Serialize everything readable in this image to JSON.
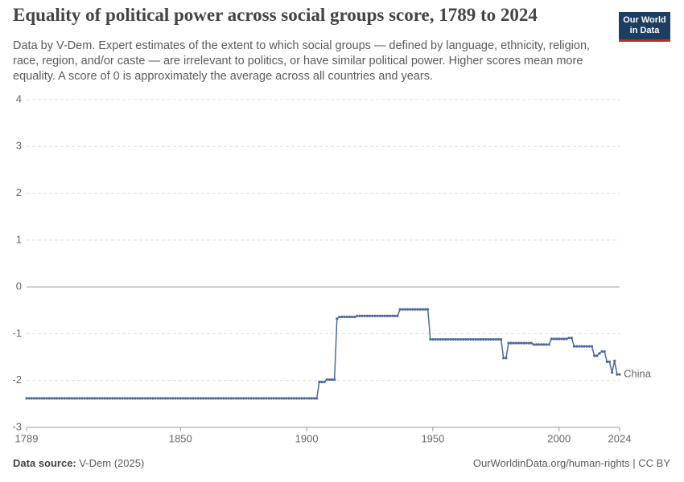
{
  "chart_data": {
    "type": "line",
    "title": "Equality of political power across social groups score, 1789 to 2024",
    "subtitle": "Data by V-Dem. Expert estimates of the extent to which social groups — defined by language, ethnicity, religion, race, region, and/or caste — are irrelevant to politics, or have similar political power. Higher scores mean more equality. A score of 0 is approximately the average across all countries and years.",
    "logo": "Our World in Data",
    "source_label": "Data source:",
    "source": "V-Dem (2025)",
    "footer_right": "OurWorldinData.org/human-rights | CC BY",
    "x": [
      1789,
      1790,
      1791,
      1792,
      1793,
      1794,
      1795,
      1796,
      1797,
      1798,
      1799,
      1800,
      1801,
      1802,
      1803,
      1804,
      1805,
      1806,
      1807,
      1808,
      1809,
      1810,
      1811,
      1812,
      1813,
      1814,
      1815,
      1816,
      1817,
      1818,
      1819,
      1820,
      1821,
      1822,
      1823,
      1824,
      1825,
      1826,
      1827,
      1828,
      1829,
      1830,
      1831,
      1832,
      1833,
      1834,
      1835,
      1836,
      1837,
      1838,
      1839,
      1840,
      1841,
      1842,
      1843,
      1844,
      1845,
      1846,
      1847,
      1848,
      1849,
      1850,
      1851,
      1852,
      1853,
      1854,
      1855,
      1856,
      1857,
      1858,
      1859,
      1860,
      1861,
      1862,
      1863,
      1864,
      1865,
      1866,
      1867,
      1868,
      1869,
      1870,
      1871,
      1872,
      1873,
      1874,
      1875,
      1876,
      1877,
      1878,
      1879,
      1880,
      1881,
      1882,
      1883,
      1884,
      1885,
      1886,
      1887,
      1888,
      1889,
      1890,
      1891,
      1892,
      1893,
      1894,
      1895,
      1896,
      1897,
      1898,
      1899,
      1900,
      1901,
      1902,
      1903,
      1904,
      1905,
      1906,
      1907,
      1908,
      1909,
      1910,
      1911,
      1912,
      1913,
      1914,
      1915,
      1916,
      1917,
      1918,
      1919,
      1920,
      1921,
      1922,
      1923,
      1924,
      1925,
      1926,
      1927,
      1928,
      1929,
      1930,
      1931,
      1932,
      1933,
      1934,
      1935,
      1936,
      1937,
      1938,
      1939,
      1940,
      1941,
      1942,
      1943,
      1944,
      1945,
      1946,
      1947,
      1948,
      1949,
      1950,
      1951,
      1952,
      1953,
      1954,
      1955,
      1956,
      1957,
      1958,
      1959,
      1960,
      1961,
      1962,
      1963,
      1964,
      1965,
      1966,
      1967,
      1968,
      1969,
      1970,
      1971,
      1972,
      1973,
      1974,
      1975,
      1976,
      1977,
      1978,
      1979,
      1980,
      1981,
      1982,
      1983,
      1984,
      1985,
      1986,
      1987,
      1988,
      1989,
      1990,
      1991,
      1992,
      1993,
      1994,
      1995,
      1996,
      1997,
      1998,
      1999,
      2000,
      2001,
      2002,
      2003,
      2004,
      2005,
      2006,
      2007,
      2008,
      2009,
      2010,
      2011,
      2012,
      2013,
      2014,
      2015,
      2016,
      2017,
      2018,
      2019,
      2020,
      2021,
      2022,
      2023,
      2024
    ],
    "series": [
      {
        "name": "China",
        "color": "#4c6a9c",
        "values": [
          -2.38,
          -2.38,
          -2.38,
          -2.38,
          -2.38,
          -2.38,
          -2.38,
          -2.38,
          -2.38,
          -2.38,
          -2.38,
          -2.38,
          -2.38,
          -2.38,
          -2.38,
          -2.38,
          -2.38,
          -2.38,
          -2.38,
          -2.38,
          -2.38,
          -2.38,
          -2.38,
          -2.38,
          -2.38,
          -2.38,
          -2.38,
          -2.38,
          -2.38,
          -2.38,
          -2.38,
          -2.38,
          -2.38,
          -2.38,
          -2.38,
          -2.38,
          -2.38,
          -2.38,
          -2.38,
          -2.38,
          -2.38,
          -2.38,
          -2.38,
          -2.38,
          -2.38,
          -2.38,
          -2.38,
          -2.38,
          -2.38,
          -2.38,
          -2.38,
          -2.38,
          -2.38,
          -2.38,
          -2.38,
          -2.38,
          -2.38,
          -2.38,
          -2.38,
          -2.38,
          -2.38,
          -2.38,
          -2.38,
          -2.38,
          -2.38,
          -2.38,
          -2.38,
          -2.38,
          -2.38,
          -2.38,
          -2.38,
          -2.38,
          -2.38,
          -2.38,
          -2.38,
          -2.38,
          -2.38,
          -2.38,
          -2.38,
          -2.38,
          -2.38,
          -2.38,
          -2.38,
          -2.38,
          -2.38,
          -2.38,
          -2.38,
          -2.38,
          -2.38,
          -2.38,
          -2.38,
          -2.38,
          -2.38,
          -2.38,
          -2.38,
          -2.38,
          -2.38,
          -2.38,
          -2.38,
          -2.38,
          -2.38,
          -2.38,
          -2.38,
          -2.38,
          -2.38,
          -2.38,
          -2.38,
          -2.38,
          -2.38,
          -2.38,
          -2.38,
          -2.38,
          -2.38,
          -2.38,
          -2.38,
          -2.38,
          -2.03,
          -2.03,
          -2.03,
          -1.98,
          -1.98,
          -1.98,
          -1.98,
          -0.68,
          -0.64,
          -0.64,
          -0.64,
          -0.64,
          -0.64,
          -0.64,
          -0.64,
          -0.62,
          -0.62,
          -0.62,
          -0.62,
          -0.62,
          -0.62,
          -0.62,
          -0.62,
          -0.62,
          -0.62,
          -0.62,
          -0.62,
          -0.62,
          -0.62,
          -0.62,
          -0.62,
          -0.62,
          -0.48,
          -0.48,
          -0.48,
          -0.48,
          -0.48,
          -0.48,
          -0.48,
          -0.48,
          -0.48,
          -0.48,
          -0.48,
          -0.48,
          -1.12,
          -1.12,
          -1.12,
          -1.12,
          -1.12,
          -1.12,
          -1.12,
          -1.12,
          -1.12,
          -1.12,
          -1.12,
          -1.12,
          -1.12,
          -1.12,
          -1.12,
          -1.12,
          -1.12,
          -1.12,
          -1.12,
          -1.12,
          -1.12,
          -1.12,
          -1.12,
          -1.12,
          -1.12,
          -1.12,
          -1.12,
          -1.12,
          -1.12,
          -1.52,
          -1.52,
          -1.2,
          -1.2,
          -1.2,
          -1.2,
          -1.2,
          -1.2,
          -1.2,
          -1.2,
          -1.2,
          -1.2,
          -1.23,
          -1.23,
          -1.23,
          -1.23,
          -1.23,
          -1.23,
          -1.23,
          -1.11,
          -1.11,
          -1.11,
          -1.11,
          -1.11,
          -1.11,
          -1.11,
          -1.09,
          -1.09,
          -1.27,
          -1.27,
          -1.27,
          -1.27,
          -1.27,
          -1.27,
          -1.27,
          -1.27,
          -1.47,
          -1.47,
          -1.42,
          -1.38,
          -1.38,
          -1.6,
          -1.6,
          -1.83,
          -1.58,
          -1.87,
          -1.87
        ]
      }
    ],
    "xlim": [
      1789,
      2024
    ],
    "xticks": [
      1789,
      1850,
      1900,
      1950,
      2000,
      2024
    ],
    "ylim": [
      -3,
      4
    ],
    "yticks": [
      -3,
      -2,
      -1,
      0,
      1,
      2,
      3,
      4
    ],
    "grid": true
  }
}
